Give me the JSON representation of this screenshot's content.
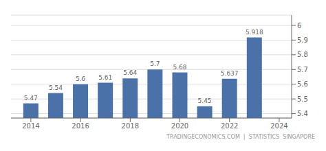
{
  "chart_data": {
    "type": "bar",
    "x": [
      2014,
      2015,
      2016,
      2017,
      2018,
      2019,
      2020,
      2021,
      2022,
      2023
    ],
    "values": [
      5.47,
      5.54,
      5.6,
      5.61,
      5.64,
      5.7,
      5.68,
      5.45,
      5.637,
      5.918
    ],
    "color": "#4a72a8",
    "xlim": [
      2013.2,
      2024.5
    ],
    "xticks": [
      2014,
      2016,
      2018,
      2020,
      2022,
      2024
    ],
    "ylim": [
      5.37,
      6.07
    ],
    "yticks": [
      5.4,
      5.5,
      5.6,
      5.7,
      5.8,
      5.9,
      6
    ],
    "grid": true,
    "data_labels": true,
    "annotation": "TRADINGECONOMICS.COM  |  STATISTICS  SINGAPORE"
  }
}
